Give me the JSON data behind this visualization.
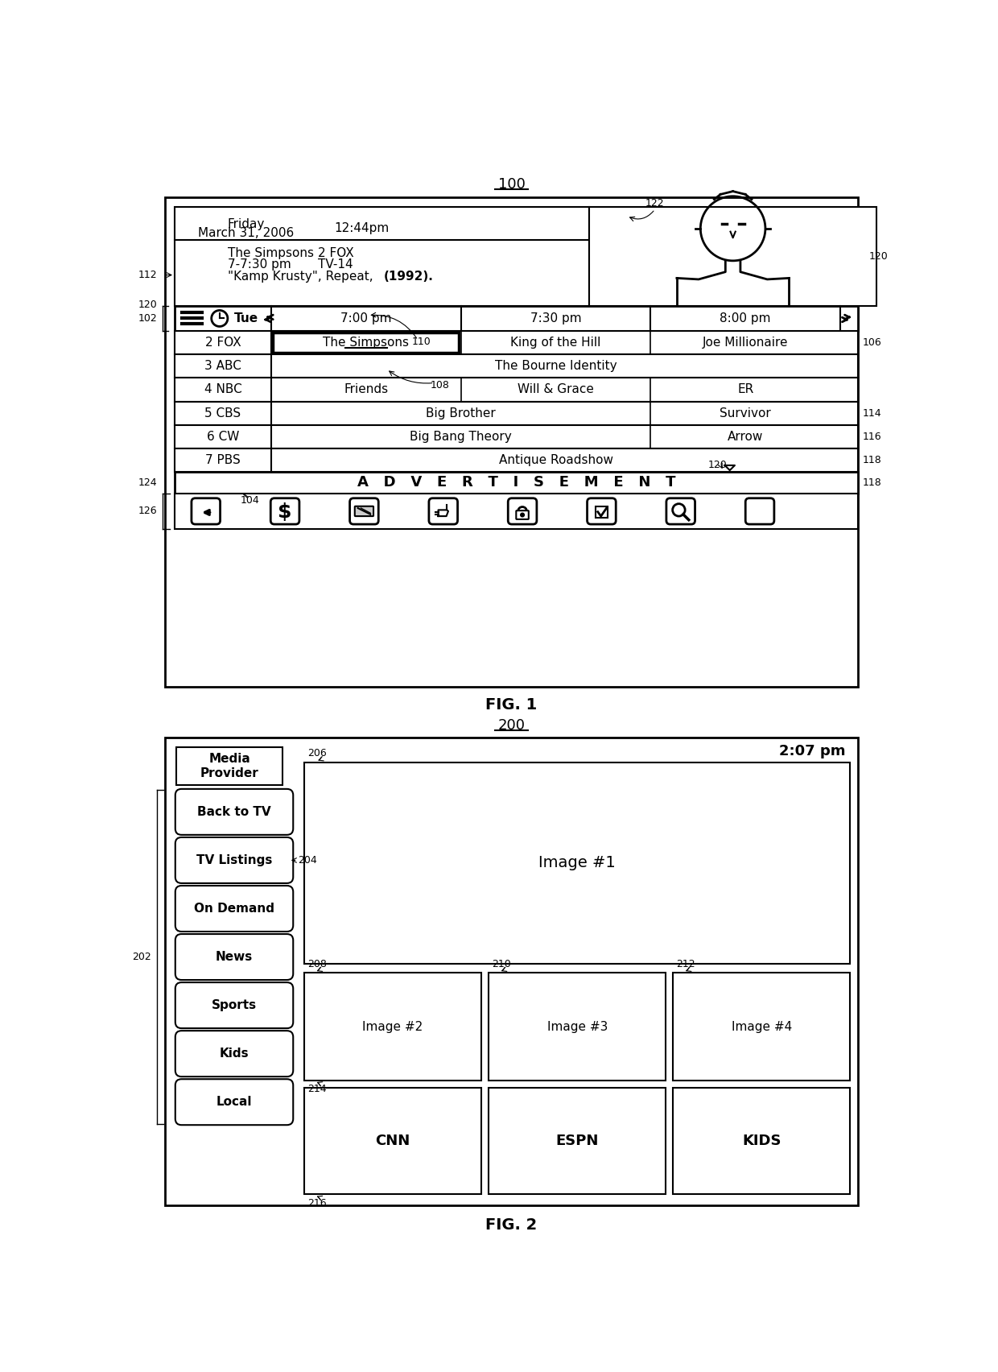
{
  "bg_color": "#ffffff",
  "fig1": {
    "ref": "100",
    "channels": [
      {
        "ch": "2 FOX",
        "shows": [
          {
            "title": "The Simpsons",
            "span": 1,
            "selected": true
          },
          {
            "title": "King of the Hill",
            "span": 1
          },
          {
            "title": "Joe Millionaire",
            "span": 1
          }
        ]
      },
      {
        "ch": "3 ABC",
        "shows": [
          {
            "title": "The Bourne Identity",
            "span": 3
          }
        ]
      },
      {
        "ch": "4 NBC",
        "shows": [
          {
            "title": "Friends",
            "span": 1
          },
          {
            "title": "Will & Grace",
            "span": 1
          },
          {
            "title": "ER",
            "span": 1
          }
        ]
      },
      {
        "ch": "5 CBS",
        "shows": [
          {
            "title": "Big Brother",
            "span": 2
          },
          {
            "title": "Survivor",
            "span": 1
          }
        ]
      },
      {
        "ch": "6 CW",
        "shows": [
          {
            "title": "Big Bang Theory",
            "span": 2
          },
          {
            "title": "Arrow",
            "span": 1
          }
        ]
      },
      {
        "ch": "7 PBS",
        "shows": [
          {
            "title": "Antique Roadshow",
            "span": 3
          }
        ]
      }
    ],
    "times": [
      "7:00 pm",
      "7:30 pm",
      "8:00 pm"
    ],
    "day": "Tue",
    "date_line1": "Friday",
    "date_line2": "March 31, 2006",
    "time_display": "12:44pm",
    "show_name": "The Simpsons",
    "show_channel": "2 FOX",
    "show_time": "7-7:30 pm",
    "show_rating": "TV-14",
    "show_episode": "\"Kamp Krusty\", Repeat, ",
    "show_year": "(1992).",
    "ad_text": "A   D   V   E   R   T   I   S   E   M   E   N   T"
  },
  "fig2": {
    "ref": "200",
    "time": "2:07 pm",
    "menu_items": [
      "Media\nProvider",
      "Back to TV",
      "TV Listings",
      "On Demand",
      "News",
      "Sports",
      "Kids",
      "Local"
    ],
    "images": [
      "Image #1",
      "Image #2",
      "Image #3",
      "Image #4"
    ],
    "channels": [
      "CNN",
      "ESPN",
      "KIDS"
    ]
  }
}
